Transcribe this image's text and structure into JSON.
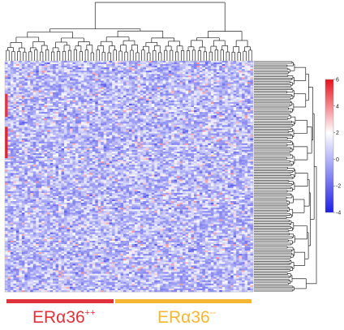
{
  "chart_data": {
    "type": "heatmap",
    "title": "",
    "xlabel": "",
    "ylabel": "",
    "groups": [
      {
        "name": "ERα36",
        "superscript": "++",
        "color": "#e0323a",
        "columns": 40
      },
      {
        "name": "ERα36",
        "superscript": "--",
        "color": "#f5b731",
        "columns": 48
      }
    ],
    "color_scale": {
      "min": -4,
      "max": 6,
      "ticks": [
        "6",
        "4",
        "2",
        "0",
        "-2",
        "-4"
      ],
      "tick_values": [
        6,
        4,
        2,
        0,
        -2,
        -4
      ],
      "low_color": "#1f1fe6",
      "mid_color": "#ffffff",
      "high_color": "#e8111d"
    },
    "grid": {
      "columns": 88,
      "rows": 140,
      "typical_value": -1.2
    },
    "highlights": [
      {
        "description": "strong positive block",
        "column": 0,
        "row_from": 20,
        "row_to": 33,
        "value": 5.2
      },
      {
        "description": "strong positive block",
        "column": 0,
        "row_from": 40,
        "row_to": 58,
        "value": 5.6
      }
    ],
    "column_dendrogram": true,
    "row_dendrogram": true
  }
}
